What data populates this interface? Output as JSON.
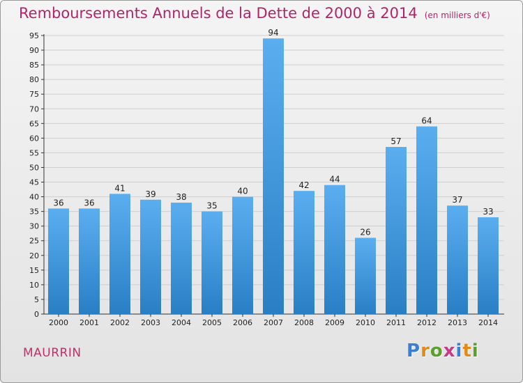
{
  "header": {
    "title": "Remboursements Annuels de la Dette de 2000 à 2014",
    "subtitle": "(en milliers d'€)"
  },
  "footer": {
    "town": "MAURRIN",
    "logo_text": "Proxiti"
  },
  "colors": {
    "title": "#b0256a",
    "bar_top": "#5aaef0",
    "bar_bottom": "#2a7ec4",
    "grid": "#cfcfcf"
  },
  "chart_data": {
    "type": "bar",
    "title": "Remboursements Annuels de la Dette de 2000 à 2014",
    "subtitle": "(en milliers d'€)",
    "xlabel": "",
    "ylabel": "",
    "categories": [
      "2000",
      "2001",
      "2002",
      "2003",
      "2004",
      "2005",
      "2006",
      "2007",
      "2008",
      "2009",
      "2010",
      "2011",
      "2012",
      "2013",
      "2014"
    ],
    "values": [
      36,
      36,
      41,
      39,
      38,
      35,
      40,
      94,
      42,
      44,
      26,
      57,
      64,
      37,
      33
    ],
    "ylim": [
      0,
      95
    ],
    "ytick_step": 5,
    "grid": true,
    "legend": "none"
  }
}
